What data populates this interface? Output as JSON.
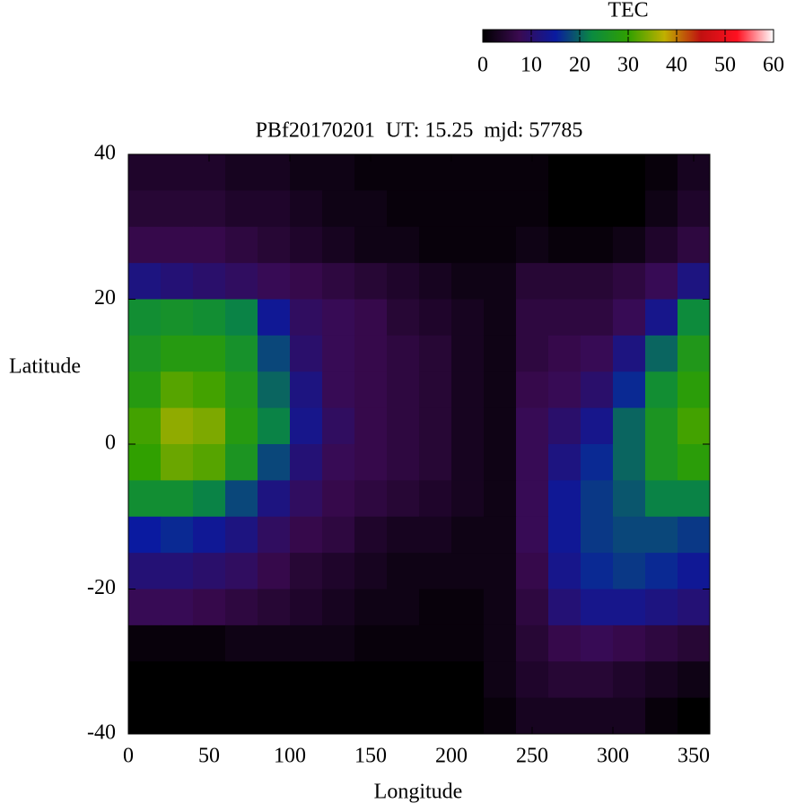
{
  "chart_data": {
    "type": "heatmap",
    "title": "PBf20170201  UT: 15.25  mjd: 57785",
    "xlabel": "Longitude",
    "ylabel": "Latitude",
    "colorbar_label": "TEC",
    "x": [
      10,
      30,
      50,
      70,
      90,
      110,
      130,
      150,
      170,
      190,
      210,
      230,
      250,
      270,
      290,
      310,
      330,
      350
    ],
    "y": [
      37.5,
      32.5,
      27.5,
      22.5,
      17.5,
      12.5,
      7.5,
      2.5,
      -2.5,
      -7.5,
      -12.5,
      -17.5,
      -22.5,
      -27.5,
      -32.5,
      -37.5
    ],
    "values": [
      [
        4,
        4,
        4,
        3,
        3,
        2,
        2,
        1,
        1,
        1,
        1,
        1,
        1,
        0,
        0,
        0,
        1,
        3
      ],
      [
        5,
        5,
        5,
        4,
        4,
        3,
        2,
        2,
        1,
        1,
        1,
        1,
        1,
        0,
        0,
        0,
        2,
        4
      ],
      [
        7,
        7,
        7,
        6,
        5,
        4,
        3,
        2,
        2,
        1,
        1,
        1,
        2,
        1,
        1,
        2,
        4,
        6
      ],
      [
        12,
        11,
        10,
        9,
        8,
        7,
        6,
        5,
        4,
        3,
        2,
        2,
        5,
        5,
        5,
        6,
        8,
        12
      ],
      [
        24,
        25,
        24,
        22,
        14,
        9,
        8,
        7,
        5,
        4,
        3,
        2,
        6,
        6,
        6,
        8,
        13,
        23
      ],
      [
        26,
        28,
        28,
        25,
        18,
        10,
        8,
        7,
        6,
        5,
        3,
        2,
        6,
        7,
        8,
        12,
        20,
        27
      ],
      [
        28,
        32,
        31,
        27,
        20,
        12,
        8,
        7,
        6,
        5,
        3,
        2,
        7,
        8,
        10,
        16,
        24,
        29
      ],
      [
        31,
        35,
        34,
        28,
        22,
        13,
        9,
        7,
        6,
        5,
        3,
        2,
        8,
        10,
        13,
        20,
        26,
        31
      ],
      [
        30,
        33,
        32,
        26,
        18,
        11,
        8,
        7,
        6,
        5,
        3,
        2,
        8,
        12,
        16,
        20,
        26,
        29
      ],
      [
        24,
        24,
        22,
        18,
        12,
        9,
        7,
        6,
        5,
        4,
        3,
        2,
        8,
        14,
        17,
        19,
        22,
        22
      ],
      [
        15,
        16,
        14,
        12,
        9,
        7,
        6,
        4,
        3,
        3,
        2,
        2,
        8,
        14,
        17,
        18,
        18,
        17
      ],
      [
        11,
        11,
        10,
        9,
        7,
        5,
        4,
        3,
        2,
        2,
        2,
        2,
        7,
        13,
        16,
        17,
        16,
        14
      ],
      [
        8,
        8,
        7,
        6,
        5,
        4,
        3,
        2,
        2,
        1,
        1,
        2,
        6,
        11,
        13,
        13,
        12,
        11
      ],
      [
        1,
        1,
        1,
        2,
        2,
        2,
        2,
        1,
        1,
        1,
        1,
        2,
        5,
        7,
        8,
        7,
        6,
        5
      ],
      [
        0,
        0,
        0,
        0,
        0,
        0,
        0,
        0,
        0,
        0,
        0,
        2,
        4,
        5,
        5,
        4,
        3,
        2
      ],
      [
        0,
        0,
        0,
        0,
        0,
        0,
        0,
        0,
        0,
        0,
        0,
        1,
        3,
        3,
        3,
        3,
        1,
        0
      ]
    ],
    "xlim": [
      0,
      360
    ],
    "xticks": [
      0,
      50,
      100,
      150,
      200,
      250,
      300,
      350
    ],
    "ylim": [
      -40,
      40
    ],
    "yticks": [
      -40,
      -20,
      0,
      20,
      40
    ],
    "zlim": [
      0,
      60
    ],
    "zticks": [
      0,
      10,
      20,
      30,
      40,
      50,
      60
    ],
    "colorscale": [
      "#000000",
      "#3a0a50",
      "#0a1aa0",
      "#0a8a40",
      "#30a000",
      "#c0b000",
      "#c01010",
      "#ff1020",
      "#ffffff"
    ]
  }
}
